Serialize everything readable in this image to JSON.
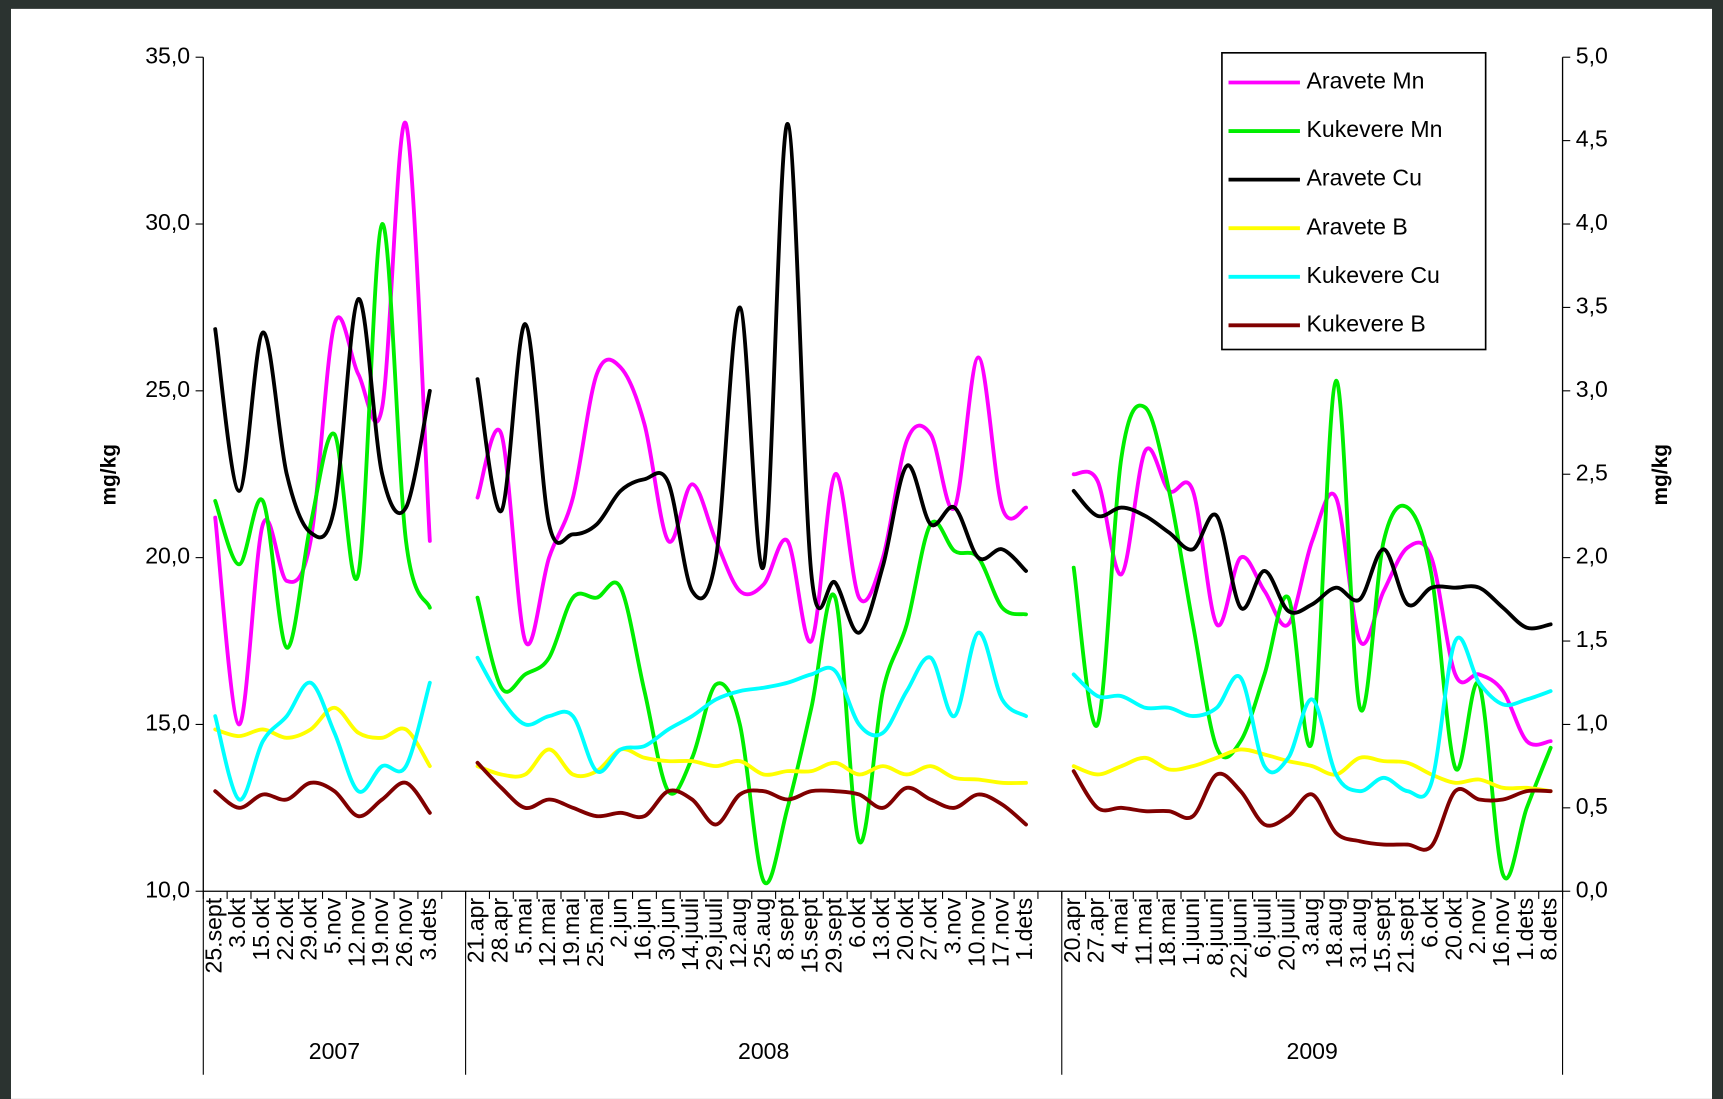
{
  "chart_data": {
    "type": "line",
    "y_label": "mg/kg",
    "y2_label": "mg/kg",
    "categories": [
      "25.sept",
      "3.okt",
      "15.okt",
      "22.okt",
      "29.okt",
      "5.nov",
      "12.nov",
      "19.nov",
      "26.nov",
      "3.dets",
      null,
      "21.apr",
      "28.apr",
      "5.mai",
      "12.mai",
      "19.mai",
      "25.mai",
      "2.jun",
      "16.jun",
      "30.jun",
      "14.juuli",
      "29.juuli",
      "12.aug",
      "25.aug",
      "8.sept",
      "15.sept",
      "29.sept",
      "6.okt",
      "13.okt",
      "20.okt",
      "27.okt",
      "3.nov",
      "10.nov",
      "17.nov",
      "1.dets",
      null,
      "20.apr",
      "27.apr",
      "4.mai",
      "11.mai",
      "18.mai",
      "1.juuni",
      "8.juuni",
      "22.juuni",
      "6.juuli",
      "20.juuli",
      "3.aug",
      "18.aug",
      "31.aug",
      "15.sept",
      "21.sept",
      "6.okt",
      "20.okt",
      "2.nov",
      "16.nov",
      "1.dets",
      "8.dets"
    ],
    "category_groups": [
      {
        "label": "2007",
        "count": 11
      },
      {
        "label": "2008",
        "count": 25
      },
      {
        "label": "2009",
        "count": 21
      }
    ],
    "ylim": [
      10,
      35
    ],
    "yticks": [
      {
        "value": 10,
        "label": "10,0"
      },
      {
        "value": 15,
        "label": "15,0"
      },
      {
        "value": 20,
        "label": "20,0"
      },
      {
        "value": 25,
        "label": "25,0"
      },
      {
        "value": 30,
        "label": "30,0"
      },
      {
        "value": 35,
        "label": "35,0"
      }
    ],
    "y2lim": [
      0,
      5
    ],
    "y2ticks": [
      {
        "value": 0,
        "label": "0,0"
      },
      {
        "value": 0.5,
        "label": "0,5"
      },
      {
        "value": 1,
        "label": "1,0"
      },
      {
        "value": 1.5,
        "label": "1,5"
      },
      {
        "value": 2,
        "label": "2,0"
      },
      {
        "value": 2.5,
        "label": "2,5"
      },
      {
        "value": 3,
        "label": "3,0"
      },
      {
        "value": 3.5,
        "label": "3,5"
      },
      {
        "value": 4,
        "label": "4,0"
      },
      {
        "value": 4.5,
        "label": "4,5"
      },
      {
        "value": 5,
        "label": "5,0"
      }
    ],
    "legend": "top-right",
    "series": [
      {
        "name": "Aravete Mn",
        "color": "#ff00ff",
        "values": [
          21.2,
          15,
          21,
          19.3,
          20.5,
          27,
          25.5,
          24.5,
          33,
          20.5,
          null,
          21.8,
          23.7,
          17.5,
          20,
          21.8,
          25.5,
          25.7,
          24,
          20.5,
          22.2,
          20.5,
          19,
          19.2,
          20.5,
          17.5,
          22.5,
          18.8,
          20,
          23.5,
          23.7,
          21.5,
          26,
          21.5,
          21.5,
          null,
          22.5,
          22.3,
          19.5,
          23.2,
          22,
          22,
          18,
          20,
          19,
          18,
          20.5,
          21.8,
          17.5,
          19,
          20.3,
          20,
          16.5,
          16.5,
          16,
          14.5,
          14.5
        ]
      },
      {
        "name": "Kukevere Mn",
        "color": "#00ee00",
        "values": [
          21.7,
          19.8,
          21.7,
          17.3,
          21,
          23.7,
          19.5,
          30,
          20.5,
          18.5,
          null,
          18.8,
          16.1,
          16.5,
          17,
          18.8,
          18.8,
          19.1,
          16,
          13,
          14,
          16.2,
          15,
          10.3,
          12.5,
          15.5,
          18.8,
          11.5,
          16,
          18,
          21,
          20.2,
          20,
          18.5,
          18.3,
          null,
          19.7,
          15,
          23,
          24.5,
          22,
          18,
          14.3,
          14.5,
          16.5,
          18.8,
          14.5,
          25.3,
          15.5,
          20.5,
          21.5,
          19.5,
          13.7,
          16.2,
          10.5,
          12.5,
          14.3
        ]
      },
      {
        "name": "Aravete Cu",
        "color": "#000000",
        "axis": "y2",
        "values": [
          3.37,
          2.4,
          3.35,
          2.5,
          2.15,
          2.3,
          3.55,
          2.5,
          2.3,
          3.0,
          null,
          3.07,
          2.28,
          3.4,
          2.2,
          2.14,
          2.2,
          2.4,
          2.47,
          2.45,
          1.8,
          2.0,
          3.5,
          1.95,
          4.6,
          1.9,
          1.85,
          1.55,
          1.95,
          2.55,
          2.2,
          2.3,
          2.0,
          2.05,
          1.92,
          null,
          2.4,
          2.25,
          2.3,
          2.25,
          2.15,
          2.05,
          2.25,
          1.7,
          1.92,
          1.68,
          1.72,
          1.82,
          1.75,
          2.05,
          1.72,
          1.82,
          1.82,
          1.82,
          1.7,
          1.58,
          1.6
        ]
      },
      {
        "name": "Aravete B",
        "color": "#ffff00",
        "axis": "y2",
        "values": [
          0.97,
          0.93,
          0.97,
          0.92,
          0.97,
          1.1,
          0.95,
          0.92,
          0.97,
          0.75,
          null,
          0.75,
          0.7,
          0.7,
          0.85,
          0.7,
          0.72,
          0.85,
          0.8,
          0.78,
          0.78,
          0.75,
          0.78,
          0.7,
          0.72,
          0.72,
          0.77,
          0.7,
          0.75,
          0.7,
          0.75,
          0.68,
          0.67,
          0.65,
          0.65,
          null,
          0.75,
          0.7,
          0.75,
          0.8,
          0.73,
          0.75,
          0.8,
          0.85,
          0.82,
          0.78,
          0.75,
          0.7,
          0.8,
          0.78,
          0.77,
          0.7,
          0.65,
          0.67,
          0.62,
          0.62,
          0.6
        ]
      },
      {
        "name": "Kukevere Cu",
        "color": "#00ffff",
        "axis": "y2",
        "values": [
          1.05,
          0.55,
          0.9,
          1.05,
          1.25,
          0.95,
          0.6,
          0.75,
          0.75,
          1.25,
          null,
          1.4,
          1.15,
          1.0,
          1.05,
          1.05,
          0.72,
          0.85,
          0.87,
          0.97,
          1.05,
          1.15,
          1.2,
          1.22,
          1.25,
          1.3,
          1.32,
          1.0,
          0.95,
          1.2,
          1.4,
          1.05,
          1.55,
          1.15,
          1.05,
          null,
          1.3,
          1.17,
          1.17,
          1.1,
          1.1,
          1.05,
          1.1,
          1.28,
          0.75,
          0.8,
          1.15,
          0.7,
          0.6,
          0.68,
          0.6,
          0.65,
          1.5,
          1.25,
          1.12,
          1.15,
          1.2
        ]
      },
      {
        "name": "Kukevere B",
        "color": "#800000",
        "axis": "y2",
        "values": [
          0.6,
          0.5,
          0.58,
          0.55,
          0.65,
          0.6,
          0.45,
          0.55,
          0.65,
          0.47,
          null,
          0.77,
          0.62,
          0.5,
          0.55,
          0.5,
          0.45,
          0.47,
          0.45,
          0.6,
          0.55,
          0.4,
          0.58,
          0.6,
          0.55,
          0.6,
          0.6,
          0.58,
          0.5,
          0.62,
          0.55,
          0.5,
          0.58,
          0.52,
          0.4,
          null,
          0.72,
          0.5,
          0.5,
          0.48,
          0.48,
          0.45,
          0.7,
          0.6,
          0.4,
          0.45,
          0.58,
          0.35,
          0.3,
          0.28,
          0.28,
          0.27,
          0.6,
          0.55,
          0.55,
          0.6,
          0.6
        ]
      }
    ]
  }
}
